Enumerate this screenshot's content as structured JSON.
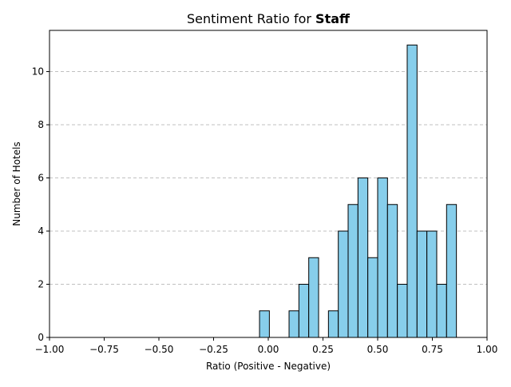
{
  "chart_data": {
    "type": "bar",
    "title_prefix": "Sentiment Ratio for ",
    "title_bold": "Staff",
    "xlabel": "Ratio (Positive - Negative)",
    "ylabel": "Number of Hotels",
    "xlim": [
      -1.0,
      1.0
    ],
    "ylim": [
      0,
      11.55
    ],
    "x_ticks": [
      -1.0,
      -0.75,
      -0.5,
      -0.25,
      0.0,
      0.25,
      0.5,
      0.75,
      1.0
    ],
    "x_tick_labels": [
      "−1.00",
      "−0.75",
      "−0.50",
      "−0.25",
      "0.00",
      "0.25",
      "0.50",
      "0.75",
      "1.00"
    ],
    "y_ticks": [
      0,
      2,
      4,
      6,
      8,
      10
    ],
    "y_tick_labels": [
      "0",
      "2",
      "4",
      "6",
      "8",
      "10"
    ],
    "grid": "y-dashed",
    "bar_color": "#87CEEB",
    "edge_color": "#000000",
    "grid_color": "#c0c0c0",
    "bins": [
      {
        "x0": -0.04,
        "x1": 0.005,
        "count": 1
      },
      {
        "x0": 0.095,
        "x1": 0.14,
        "count": 1
      },
      {
        "x0": 0.14,
        "x1": 0.185,
        "count": 2
      },
      {
        "x0": 0.185,
        "x1": 0.23,
        "count": 3
      },
      {
        "x0": 0.275,
        "x1": 0.32,
        "count": 1
      },
      {
        "x0": 0.32,
        "x1": 0.365,
        "count": 4
      },
      {
        "x0": 0.365,
        "x1": 0.41,
        "count": 5
      },
      {
        "x0": 0.41,
        "x1": 0.455,
        "count": 6
      },
      {
        "x0": 0.455,
        "x1": 0.5,
        "count": 3
      },
      {
        "x0": 0.5,
        "x1": 0.545,
        "count": 6
      },
      {
        "x0": 0.545,
        "x1": 0.59,
        "count": 5
      },
      {
        "x0": 0.59,
        "x1": 0.635,
        "count": 2
      },
      {
        "x0": 0.635,
        "x1": 0.68,
        "count": 11
      },
      {
        "x0": 0.68,
        "x1": 0.725,
        "count": 4
      },
      {
        "x0": 0.725,
        "x1": 0.77,
        "count": 4
      },
      {
        "x0": 0.77,
        "x1": 0.815,
        "count": 2
      },
      {
        "x0": 0.815,
        "x1": 0.86,
        "count": 5
      }
    ]
  }
}
